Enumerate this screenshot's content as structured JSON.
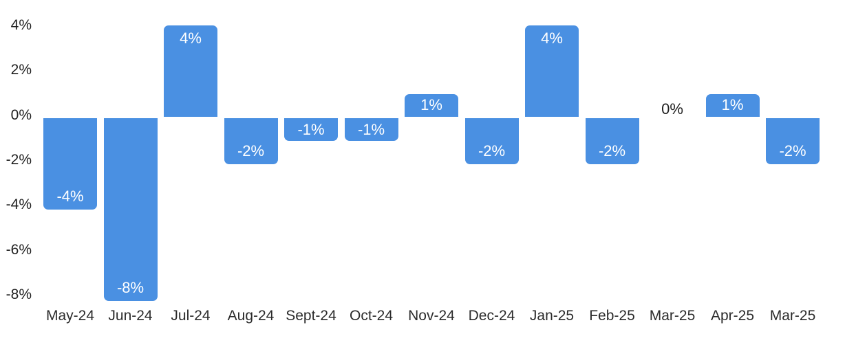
{
  "chart_data": {
    "type": "bar",
    "title": "",
    "xlabel": "",
    "ylabel": "",
    "grid": false,
    "legend": null,
    "background_color": "#ffffff",
    "bar_color": "#4a90e2",
    "bar_label_color_inside": "#ffffff",
    "bar_label_color_outside": "#1f1f1f",
    "axis_text_color": "#1f1f1f",
    "categories": [
      "May-24",
      "Jun-24",
      "Jul-24",
      "Aug-24",
      "Sept-24",
      "Oct-24",
      "Nov-24",
      "Dec-24",
      "Jan-25",
      "Feb-25",
      "Mar-25",
      "Apr-25",
      "Mar-25"
    ],
    "values": [
      -4,
      -8,
      4,
      -2,
      -1,
      -1,
      1,
      -2,
      4,
      -2,
      0,
      1,
      -2
    ],
    "bar_labels": [
      "-4%",
      "-8%",
      "4%",
      "-2%",
      "-1%",
      "-1%",
      "1%",
      "-2%",
      "4%",
      "-2%",
      "0%",
      "1%",
      "-2%"
    ],
    "y_ticks": [
      "4%",
      "2%",
      "0%",
      "-2%",
      "-4%",
      "-6%",
      "-8%"
    ],
    "y_tick_values": [
      4,
      2,
      0,
      -2,
      -4,
      -6,
      -8
    ],
    "ylim": [
      -8,
      4
    ]
  }
}
